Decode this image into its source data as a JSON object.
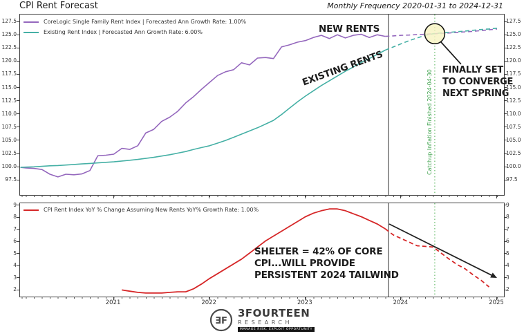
{
  "header": {
    "title": "CPI Rent Forecast",
    "subtitle": "Monthly Frequency 2020-01-31 to 2024-12-31"
  },
  "chart_data": [
    {
      "type": "line",
      "panel": "top",
      "x_start": "2020-01",
      "x_tick_labels": [
        "2021",
        "2022",
        "2023",
        "2024",
        "2025"
      ],
      "x_tick_months": [
        12,
        24,
        36,
        48,
        60
      ],
      "ylim": [
        94.8,
        128.9
      ],
      "yticks": [
        97.5,
        100.0,
        102.5,
        105.0,
        107.5,
        110.0,
        112.5,
        115.0,
        117.5,
        120.0,
        122.5,
        125.0,
        127.5
      ],
      "grid": false,
      "legend_position": "upper-left",
      "series": [
        {
          "name": "CoreLogic Single Family Rent Index | Forecasted Ann Growth Rate: 1.00%",
          "color": "#9467bd",
          "start_month": 0,
          "values": [
            100.0,
            99.9,
            99.8,
            99.6,
            98.7,
            98.2,
            98.7,
            98.6,
            98.75,
            99.4,
            102.2,
            102.3,
            102.5,
            103.6,
            103.4,
            104.1,
            106.5,
            107.2,
            108.7,
            109.5,
            110.6,
            112.2,
            113.4,
            114.8,
            116.1,
            117.4,
            118.1,
            118.5,
            119.8,
            119.4,
            120.7,
            120.8,
            120.6,
            122.8,
            123.2,
            123.7,
            124.0,
            124.6,
            125.0,
            124.4,
            125.1,
            124.5,
            125.0,
            125.2,
            124.6,
            125.1,
            124.8
          ],
          "forecast_start_month": 46,
          "forecast_values": [
            124.8,
            124.9,
            125.0,
            125.05,
            125.15,
            125.2,
            125.3,
            125.35,
            125.45,
            125.55,
            125.65,
            125.75,
            125.9,
            126.05,
            126.2
          ]
        },
        {
          "name": "Existing Rent Index | Forecasted Ann Growth Rate: 6.00%",
          "color": "#45b0a5",
          "start_month": 0,
          "values": [
            100.0,
            100.05,
            100.1,
            100.2,
            100.3,
            100.35,
            100.45,
            100.55,
            100.65,
            100.75,
            100.85,
            100.95,
            101.05,
            101.2,
            101.35,
            101.5,
            101.7,
            101.9,
            102.15,
            102.4,
            102.7,
            103.0,
            103.4,
            103.75,
            104.1,
            104.6,
            105.1,
            105.7,
            106.3,
            106.9,
            107.5,
            108.2,
            108.9,
            110.0,
            111.2,
            112.4,
            113.5,
            114.5,
            115.5,
            116.4,
            117.3,
            118.2,
            119.0,
            119.9,
            120.6,
            121.4,
            122.2
          ],
          "forecast_start_month": 46,
          "forecast_values": [
            122.2,
            122.8,
            123.4,
            124.0,
            124.5,
            125.0,
            125.3,
            125.45,
            125.55,
            125.7,
            125.8,
            125.95,
            126.1,
            126.2,
            126.35
          ]
        }
      ],
      "events": {
        "history_end_month": 46.4,
        "catchup_month": 52.2,
        "convergence": {
          "month": 52.2,
          "value": 125.3
        }
      },
      "annotations": {
        "new_rents": "NEW RENTS",
        "existing_rents": "EXISTING RENTS",
        "converge": "FINALLY SET\nTO CONVERGE\nNEXT SPRING",
        "catchup": "Catchup Inflation Finished 2024-04-30"
      }
    },
    {
      "type": "line",
      "panel": "bottom",
      "ylim": [
        1.6,
        9.2
      ],
      "yticks": [
        2,
        3,
        4,
        5,
        6,
        7,
        8,
        9
      ],
      "grid": false,
      "legend_position": "upper-left",
      "series": [
        {
          "name": "CPI Rent Index YoY % Change Assuming New Rents YoY% Growth Rate: 1.00%",
          "color": "#d62728",
          "start_month": 13,
          "values": [
            2.05,
            1.95,
            1.85,
            1.8,
            1.8,
            1.8,
            1.85,
            1.9,
            1.9,
            2.15,
            2.55,
            3.0,
            3.4,
            3.8,
            4.2,
            4.6,
            5.1,
            5.6,
            6.1,
            6.5,
            6.9,
            7.3,
            7.7,
            8.1,
            8.4,
            8.6,
            8.75,
            8.75,
            8.6,
            8.35,
            8.1,
            7.8,
            7.5,
            7.1
          ],
          "forecast_start_month": 46,
          "forecast_values": [
            7.1,
            6.6,
            6.3,
            6.0,
            5.7,
            5.65,
            5.6,
            5.1,
            4.6,
            4.15,
            3.8,
            3.3,
            2.85,
            2.3
          ]
        }
      ],
      "events": {
        "history_end_month": 46.4,
        "catchup_month": 52.2
      },
      "annotations": {
        "shelter": "SHELTER =  42% OF CORE\nCPI...WILL PROVIDE\nPERSISTENT 2024 TAILWIND"
      }
    }
  ],
  "colors": {
    "purple": "#9467bd",
    "teal": "#45b0a5",
    "red": "#d62728",
    "green_line": "#66bb6a",
    "green_text": "#3fa34d",
    "vline": "#2b2b2b",
    "circle_fill": "#f7f4c0",
    "circle_edge": "#111111",
    "arrow": "#222222"
  },
  "footer": {
    "monogram": "ƎF",
    "brand": "3FOURTEEN",
    "brand2": "RESEARCH",
    "tagline": "MANAGE RISK. EXPLOIT OPPORTUNITY"
  }
}
